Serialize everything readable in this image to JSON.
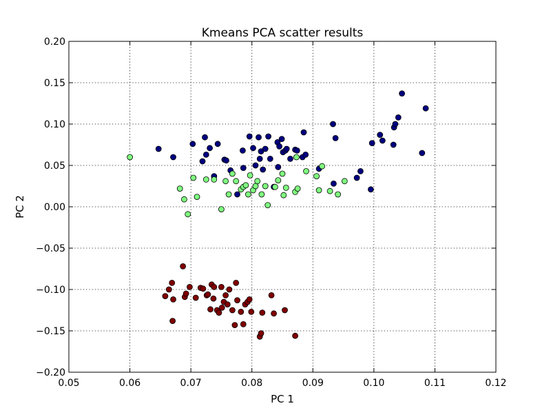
{
  "chart_data": {
    "type": "scatter",
    "title": "Kmeans PCA scatter results",
    "xlabel": "PC 1",
    "ylabel": "PC 2",
    "xlim": [
      0.05,
      0.12
    ],
    "ylim": [
      -0.2,
      0.2
    ],
    "xticks": [
      "0.05",
      "0.06",
      "0.07",
      "0.08",
      "0.09",
      "0.10",
      "0.11",
      "0.12"
    ],
    "yticks": [
      "−0.20",
      "−0.15",
      "−0.10",
      "−0.05",
      "0.00",
      "0.05",
      "0.10",
      "0.15",
      "0.20"
    ],
    "grid": true,
    "series": [
      {
        "color": "#00007f",
        "points": [
          [
            0.0647,
            0.07
          ],
          [
            0.0671,
            0.06
          ],
          [
            0.0703,
            0.076
          ],
          [
            0.0719,
            0.055
          ],
          [
            0.0723,
            0.084
          ],
          [
            0.0725,
            0.063
          ],
          [
            0.0731,
            0.071
          ],
          [
            0.0738,
            0.037
          ],
          [
            0.0744,
            0.076
          ],
          [
            0.0755,
            0.057
          ],
          [
            0.0758,
            0.056
          ],
          [
            0.0765,
            0.044
          ],
          [
            0.0776,
            0.015
          ],
          [
            0.0785,
            0.068
          ],
          [
            0.0786,
            0.047
          ],
          [
            0.0796,
            0.085
          ],
          [
            0.0802,
            0.071
          ],
          [
            0.0806,
            0.05
          ],
          [
            0.0811,
            0.084
          ],
          [
            0.0813,
            0.058
          ],
          [
            0.0815,
            0.067
          ],
          [
            0.0818,
            0.045
          ],
          [
            0.0822,
            0.07
          ],
          [
            0.0827,
            0.085
          ],
          [
            0.083,
            0.058
          ],
          [
            0.0836,
            0.024
          ],
          [
            0.0842,
            0.078
          ],
          [
            0.0843,
            0.048
          ],
          [
            0.0845,
            0.073
          ],
          [
            0.0849,
            0.082
          ],
          [
            0.0851,
            0.066
          ],
          [
            0.0855,
            0.068
          ],
          [
            0.0857,
            0.07
          ],
          [
            0.0863,
            0.058
          ],
          [
            0.0871,
            0.069
          ],
          [
            0.0874,
            0.068
          ],
          [
            0.0883,
            0.06
          ],
          [
            0.0885,
            0.09
          ],
          [
            0.0888,
            0.063
          ],
          [
            0.091,
            0.046
          ],
          [
            0.0933,
            0.1
          ],
          [
            0.0934,
            0.028
          ],
          [
            0.0937,
            0.083
          ],
          [
            0.0972,
            0.035
          ],
          [
            0.0978,
            0.043
          ],
          [
            0.0995,
            0.021
          ],
          [
            0.0997,
            0.077
          ],
          [
            0.101,
            0.087
          ],
          [
            0.1014,
            0.08
          ],
          [
            0.1032,
            0.075
          ],
          [
            0.1033,
            0.096
          ],
          [
            0.1035,
            0.1
          ],
          [
            0.104,
            0.108
          ],
          [
            0.1046,
            0.137
          ],
          [
            0.1079,
            0.065
          ],
          [
            0.1085,
            0.119
          ]
        ]
      },
      {
        "color": "#7fff7f",
        "points": [
          [
            0.06,
            0.06
          ],
          [
            0.0682,
            0.022
          ],
          [
            0.0689,
            0.009
          ],
          [
            0.0695,
            -0.009
          ],
          [
            0.0704,
            0.035
          ],
          [
            0.071,
            0.012
          ],
          [
            0.0725,
            0.033
          ],
          [
            0.0738,
            0.033
          ],
          [
            0.075,
            -0.003
          ],
          [
            0.0757,
            0.031
          ],
          [
            0.0762,
            0.015
          ],
          [
            0.0768,
            0.04
          ],
          [
            0.0774,
            0.031
          ],
          [
            0.0782,
            0.021
          ],
          [
            0.0786,
            0.024
          ],
          [
            0.079,
            0.026
          ],
          [
            0.0794,
            0.015
          ],
          [
            0.0797,
            0.038
          ],
          [
            0.0802,
            0.02
          ],
          [
            0.0806,
            0.025
          ],
          [
            0.0809,
            0.031
          ],
          [
            0.0816,
            0.015
          ],
          [
            0.0822,
            0.025
          ],
          [
            0.0826,
            0.002
          ],
          [
            0.0838,
            0.024
          ],
          [
            0.0843,
            0.032
          ],
          [
            0.085,
            0.04
          ],
          [
            0.0852,
            0.014
          ],
          [
            0.0856,
            0.023
          ],
          [
            0.0871,
            0.018
          ],
          [
            0.0873,
            0.06
          ],
          [
            0.0875,
            0.022
          ],
          [
            0.0889,
            0.043
          ],
          [
            0.0906,
            0.037
          ],
          [
            0.091,
            0.02
          ],
          [
            0.0915,
            0.049
          ],
          [
            0.0928,
            0.019
          ],
          [
            0.0941,
            0.015
          ],
          [
            0.0952,
            0.031
          ]
        ]
      },
      {
        "color": "#7f0000",
        "points": [
          [
            0.0658,
            -0.108
          ],
          [
            0.0664,
            -0.1
          ],
          [
            0.0669,
            -0.092
          ],
          [
            0.067,
            -0.138
          ],
          [
            0.0671,
            -0.112
          ],
          [
            0.0687,
            -0.072
          ],
          [
            0.069,
            -0.109
          ],
          [
            0.0692,
            -0.105
          ],
          [
            0.0698,
            -0.097
          ],
          [
            0.0708,
            -0.11
          ],
          [
            0.0716,
            -0.098
          ],
          [
            0.072,
            -0.099
          ],
          [
            0.0726,
            -0.107
          ],
          [
            0.0728,
            -0.106
          ],
          [
            0.0732,
            -0.124
          ],
          [
            0.0734,
            -0.094
          ],
          [
            0.0737,
            -0.111
          ],
          [
            0.0738,
            -0.097
          ],
          [
            0.0743,
            -0.125
          ],
          [
            0.0746,
            -0.128
          ],
          [
            0.075,
            -0.097
          ],
          [
            0.0751,
            -0.122
          ],
          [
            0.0754,
            -0.115
          ],
          [
            0.0757,
            -0.107
          ],
          [
            0.076,
            -0.118
          ],
          [
            0.0763,
            -0.1
          ],
          [
            0.0768,
            -0.125
          ],
          [
            0.0772,
            -0.143
          ],
          [
            0.0774,
            -0.092
          ],
          [
            0.0776,
            -0.113
          ],
          [
            0.0782,
            -0.127
          ],
          [
            0.0786,
            -0.142
          ],
          [
            0.0789,
            -0.118
          ],
          [
            0.0793,
            -0.115
          ],
          [
            0.0796,
            -0.112
          ],
          [
            0.0799,
            -0.127
          ],
          [
            0.0813,
            -0.157
          ],
          [
            0.0815,
            -0.153
          ],
          [
            0.0817,
            -0.128
          ],
          [
            0.0832,
            -0.107
          ],
          [
            0.0836,
            -0.129
          ],
          [
            0.0854,
            -0.125
          ],
          [
            0.0871,
            -0.156
          ]
        ]
      }
    ]
  }
}
